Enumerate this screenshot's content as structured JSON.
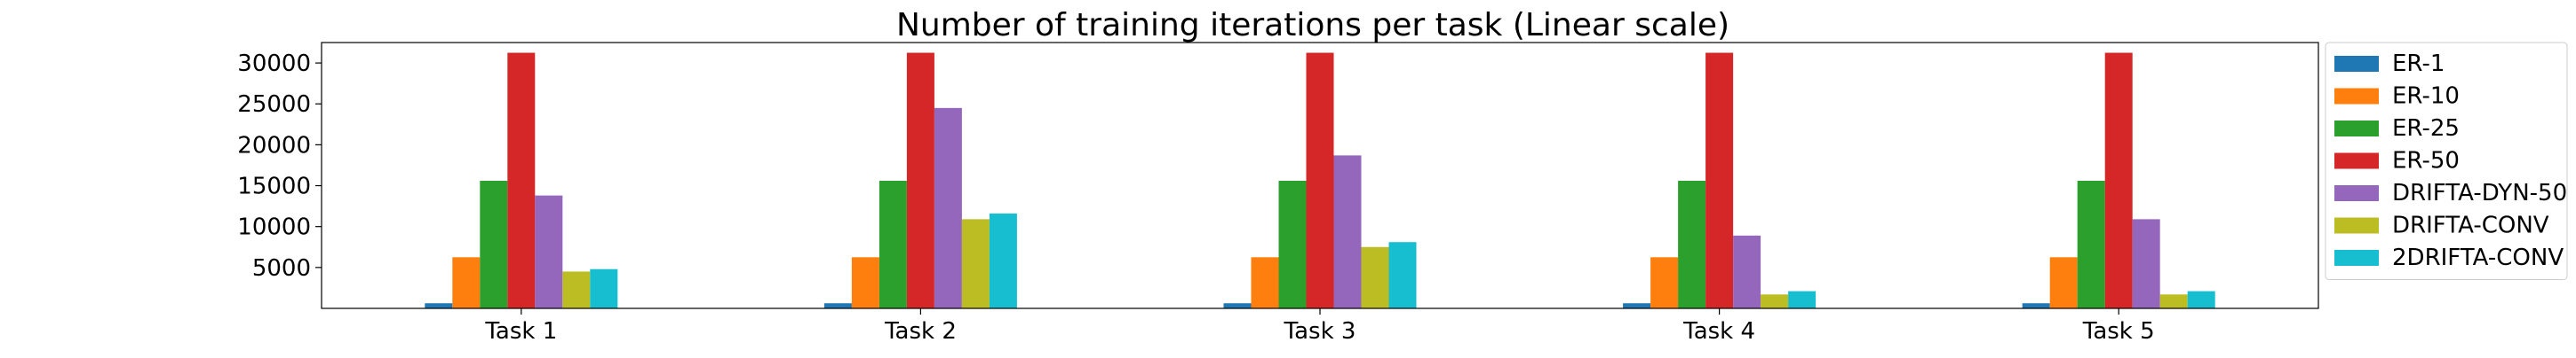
{
  "chart_data": {
    "type": "bar",
    "title": "Number of training iterations per task (Linear scale)",
    "xlabel": "",
    "ylabel": "",
    "categories": [
      "Task 1",
      "Task 2",
      "Task 3",
      "Task 4",
      "Task 5"
    ],
    "ylim": [
      0,
      32500
    ],
    "yticks": [
      5000,
      10000,
      15000,
      20000,
      25000,
      30000
    ],
    "grid": false,
    "legend_position": "outside-right",
    "series": [
      {
        "name": "ER-1",
        "color": "#1f77b4",
        "values": [
          625,
          625,
          625,
          625,
          625
        ]
      },
      {
        "name": "ER-10",
        "color": "#ff7f0e",
        "values": [
          6250,
          6250,
          6250,
          6250,
          6250
        ]
      },
      {
        "name": "ER-25",
        "color": "#2ca02c",
        "values": [
          15600,
          15600,
          15600,
          15600,
          15600
        ]
      },
      {
        "name": "ER-50",
        "color": "#d62728",
        "values": [
          31250,
          31250,
          31250,
          31250,
          31250
        ]
      },
      {
        "name": "DRIFTA-DYN-50",
        "color": "#9467bd",
        "values": [
          13800,
          24500,
          18700,
          8900,
          10900
        ]
      },
      {
        "name": "DRIFTA-CONV",
        "color": "#bcbd22",
        "values": [
          4500,
          10900,
          7500,
          1700,
          1700
        ]
      },
      {
        "name": "2DRIFTA-CONV",
        "color": "#17becf",
        "values": [
          4800,
          11600,
          8100,
          2100,
          2100
        ]
      }
    ]
  }
}
